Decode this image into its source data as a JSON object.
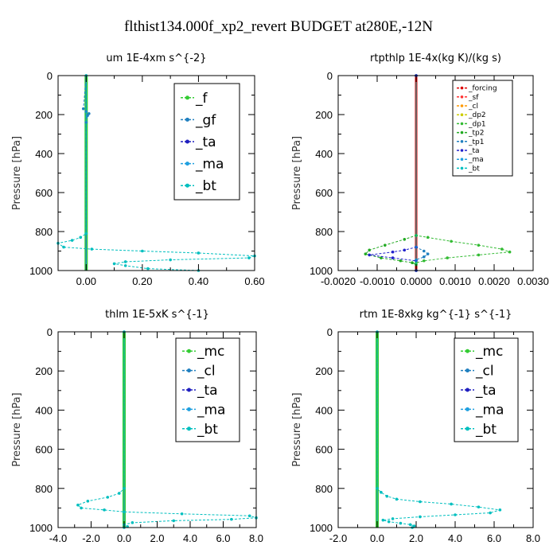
{
  "figure_title": "flthist134.000f_xp2_revert  BUDGET at280E,-12N",
  "chart_data": [
    {
      "type": "line",
      "title": "um  1E-4xm s^{-2}",
      "ylabel": "Pressure [hPa]",
      "xlim": [
        -0.1,
        0.6
      ],
      "ylim": [
        1000,
        0
      ],
      "xticks": [
        -0.1,
        0.0,
        0.1,
        0.2,
        0.3,
        0.4,
        0.5,
        0.6
      ],
      "xticklabels": [
        "",
        "0.00",
        "",
        "0.20",
        "",
        "0.40",
        "",
        "0.60"
      ],
      "yticks": [
        0,
        200,
        400,
        600,
        800,
        1000
      ],
      "yticklabels": [
        "0",
        "200",
        "400",
        "600",
        "800",
        "1000"
      ],
      "legend_position": "upper-right",
      "series": [
        {
          "name": "_f",
          "color": "#33cc33",
          "x": [
            0,
            0,
            0,
            0,
            0,
            0,
            0,
            0,
            0,
            0,
            0,
            0,
            0,
            0,
            0,
            0,
            0,
            0,
            0,
            0,
            0,
            0,
            0,
            0,
            0,
            0,
            0,
            0,
            0,
            0,
            0,
            0,
            0,
            0,
            0,
            0,
            0,
            0,
            0,
            0,
            0
          ],
          "y": [
            0,
            25,
            50,
            75,
            100,
            125,
            150,
            175,
            200,
            225,
            250,
            275,
            300,
            325,
            350,
            375,
            400,
            425,
            450,
            475,
            500,
            525,
            550,
            575,
            600,
            625,
            650,
            675,
            700,
            725,
            750,
            775,
            800,
            825,
            850,
            875,
            900,
            925,
            950,
            975,
            1000
          ]
        },
        {
          "name": "_gf",
          "color": "#1f7fbf",
          "x": [
            0,
            -0.01,
            0,
            0.01,
            0.005,
            0
          ],
          "y": [
            0,
            170,
            185,
            195,
            205,
            240
          ]
        },
        {
          "name": "_ta",
          "color": "#1f1fbf",
          "x": [
            0,
            0,
            0,
            0,
            0
          ],
          "y": [
            0,
            250,
            500,
            750,
            1000
          ]
        },
        {
          "name": "_ma",
          "color": "#1f9fdf",
          "x": [
            0,
            0,
            0,
            0,
            0
          ],
          "y": [
            0,
            250,
            500,
            750,
            1000
          ]
        },
        {
          "name": "_bt",
          "color": "#00bfbf",
          "x": [
            0,
            0,
            -0.02,
            -0.05,
            -0.1,
            -0.08,
            0.02,
            0.2,
            0.4,
            0.6,
            0.58,
            0.3,
            0.14,
            0.1,
            0.14,
            0.22,
            0.4
          ],
          "y": [
            0,
            810,
            830,
            845,
            860,
            880,
            890,
            900,
            910,
            925,
            935,
            945,
            955,
            965,
            975,
            990,
            1000
          ]
        }
      ]
    },
    {
      "type": "line",
      "title": "rtpthlp  1E-4x(kg K)/(kg s)",
      "ylabel": "Pressure [hPa]",
      "xlim": [
        -0.002,
        0.003
      ],
      "ylim": [
        1000,
        0
      ],
      "xticks": [
        -0.002,
        -0.0015,
        -0.001,
        -0.0005,
        0.0,
        0.0005,
        0.001,
        0.0015,
        0.002,
        0.0025,
        0.003
      ],
      "xticklabels": [
        "-0.0020",
        "",
        "-0.0010",
        "",
        "0.0000",
        "",
        "0.0010",
        "",
        "0.0020",
        "",
        "0.0030"
      ],
      "yticks": [
        0,
        200,
        400,
        600,
        800,
        1000
      ],
      "yticklabels": [
        "0",
        "200",
        "400",
        "600",
        "800",
        "1000"
      ],
      "legend_position": "upper-right",
      "series": [
        {
          "name": "_forcing",
          "color": "#dd0000",
          "x": [
            0,
            0,
            0,
            0,
            0
          ],
          "y": [
            0,
            250,
            500,
            750,
            1000
          ]
        },
        {
          "name": "_sf",
          "color": "#ff3333",
          "x": [
            0,
            0,
            0,
            0,
            0
          ],
          "y": [
            0,
            250,
            500,
            750,
            1000
          ]
        },
        {
          "name": "_cl",
          "color": "#ff9900",
          "x": [
            0,
            0,
            0,
            0,
            0
          ],
          "y": [
            0,
            250,
            500,
            750,
            1000
          ]
        },
        {
          "name": "_dp2",
          "color": "#cccc00",
          "x": [
            0,
            0,
            0,
            0,
            0
          ],
          "y": [
            0,
            250,
            500,
            750,
            1000
          ]
        },
        {
          "name": "_dp1",
          "color": "#33bb33",
          "x": [
            0,
            0,
            0.0003,
            0.0009,
            0.0016,
            0.0022,
            0.0024,
            0.0016,
            0.0008,
            0.0002,
            0,
            0
          ],
          "y": [
            0,
            820,
            830,
            850,
            870,
            890,
            905,
            920,
            935,
            950,
            960,
            1000
          ]
        },
        {
          "name": "_tp2",
          "color": "#22aa22",
          "x": [
            0,
            0,
            -0.0003,
            -0.0008,
            -0.0012,
            -0.0013,
            -0.0009,
            -0.0004,
            -0.0001,
            0,
            0
          ],
          "y": [
            0,
            820,
            840,
            870,
            895,
            915,
            935,
            950,
            960,
            970,
            1000
          ]
        },
        {
          "name": "_tp1",
          "color": "#1f7fbf",
          "x": [
            0,
            0,
            0.0002,
            0.0003,
            0.0002,
            0,
            0
          ],
          "y": [
            0,
            880,
            900,
            915,
            930,
            945,
            1000
          ]
        },
        {
          "name": "_ta",
          "color": "#2222cc",
          "x": [
            0,
            0,
            -0.0003,
            -0.0006,
            -0.0012,
            -0.0006,
            0,
            0
          ],
          "y": [
            0,
            880,
            895,
            905,
            920,
            935,
            950,
            1000
          ]
        },
        {
          "name": "_ma",
          "color": "#1f9fdf",
          "x": [
            0,
            0,
            0,
            0,
            0
          ],
          "y": [
            0,
            250,
            500,
            750,
            1000
          ]
        },
        {
          "name": "_bt",
          "color": "#00bfbf",
          "x": [
            0,
            0,
            0,
            0,
            0
          ],
          "y": [
            0,
            250,
            500,
            750,
            1000
          ]
        }
      ]
    },
    {
      "type": "line",
      "title": "thlm  1E-5xK s^{-1}",
      "ylabel": "Pressure [hPa]",
      "xlim": [
        -4.0,
        8.0
      ],
      "ylim": [
        1000,
        0
      ],
      "xticks": [
        -4,
        -3,
        -2,
        -1,
        0,
        1,
        2,
        3,
        4,
        5,
        6,
        7,
        8
      ],
      "xticklabels": [
        "-4.0",
        "",
        "-2.0",
        "",
        "0.0",
        "",
        "2.0",
        "",
        "4.0",
        "",
        "6.0",
        "",
        "8.0"
      ],
      "yticks": [
        0,
        200,
        400,
        600,
        800,
        1000
      ],
      "yticklabels": [
        "0",
        "200",
        "400",
        "600",
        "800",
        "1000"
      ],
      "legend_position": "upper-right",
      "series": [
        {
          "name": "_mc",
          "color": "#33cc33",
          "x": [
            0,
            0,
            0,
            0,
            0,
            0,
            0,
            0,
            0,
            0,
            0,
            0,
            0,
            0,
            0,
            0,
            0,
            0,
            0,
            0,
            0,
            0,
            0,
            0,
            0,
            0,
            0,
            0,
            0,
            0,
            0,
            0,
            0,
            0,
            0,
            0,
            0,
            0,
            0,
            0,
            0
          ],
          "y": [
            0,
            25,
            50,
            75,
            100,
            125,
            150,
            175,
            200,
            225,
            250,
            275,
            300,
            325,
            350,
            375,
            400,
            425,
            450,
            475,
            500,
            525,
            550,
            575,
            600,
            625,
            650,
            675,
            700,
            725,
            750,
            775,
            800,
            825,
            850,
            875,
            900,
            925,
            950,
            975,
            1000
          ]
        },
        {
          "name": "_cl",
          "color": "#1f7fbf",
          "x": [
            0,
            0,
            0,
            0,
            0
          ],
          "y": [
            0,
            250,
            500,
            750,
            1000
          ]
        },
        {
          "name": "_ta",
          "color": "#1f1fbf",
          "x": [
            0,
            0,
            0,
            0,
            0
          ],
          "y": [
            0,
            250,
            500,
            750,
            1000
          ]
        },
        {
          "name": "_ma",
          "color": "#1f9fdf",
          "x": [
            0,
            0,
            0,
            0,
            0
          ],
          "y": [
            0,
            250,
            500,
            750,
            1000
          ]
        },
        {
          "name": "_bt",
          "color": "#00bfbf",
          "x": [
            0,
            0,
            -0.3,
            -1.0,
            -2.2,
            -2.8,
            -2.6,
            -1.2,
            0,
            3.5,
            7.6,
            8.0,
            6.5,
            3.0,
            0.5,
            0,
            0.2,
            0
          ],
          "y": [
            0,
            800,
            825,
            845,
            865,
            885,
            900,
            910,
            920,
            930,
            940,
            950,
            958,
            965,
            975,
            985,
            995,
            1000
          ]
        }
      ]
    },
    {
      "type": "line",
      "title": "rtm  1E-8xkg kg^{-1} s^{-1}",
      "ylabel": "Pressure [hPa]",
      "xlim": [
        -2.0,
        8.0
      ],
      "ylim": [
        1000,
        0
      ],
      "xticks": [
        -2,
        -1,
        0,
        1,
        2,
        3,
        4,
        5,
        6,
        7,
        8
      ],
      "xticklabels": [
        "-2.0",
        "",
        "0.0",
        "",
        "2.0",
        "",
        "4.0",
        "",
        "6.0",
        "",
        "8.0"
      ],
      "yticks": [
        0,
        200,
        400,
        600,
        800,
        1000
      ],
      "yticklabels": [
        "0",
        "200",
        "400",
        "600",
        "800",
        "1000"
      ],
      "legend_position": "upper-right",
      "series": [
        {
          "name": "_mc",
          "color": "#33cc33",
          "x": [
            0,
            0,
            0,
            0,
            0,
            0,
            0,
            0,
            0,
            0,
            0,
            0,
            0,
            0,
            0,
            0,
            0,
            0,
            0,
            0,
            0,
            0,
            0,
            0,
            0,
            0,
            0,
            0,
            0,
            0,
            0,
            0,
            0,
            0,
            0,
            0,
            0,
            0,
            0,
            0,
            0
          ],
          "y": [
            0,
            25,
            50,
            75,
            100,
            125,
            150,
            175,
            200,
            225,
            250,
            275,
            300,
            325,
            350,
            375,
            400,
            425,
            450,
            475,
            500,
            525,
            550,
            575,
            600,
            625,
            650,
            675,
            700,
            725,
            750,
            775,
            800,
            825,
            850,
            875,
            900,
            925,
            950,
            975,
            1000
          ]
        },
        {
          "name": "_cl",
          "color": "#1f7fbf",
          "x": [
            0,
            0,
            0,
            0,
            0
          ],
          "y": [
            0,
            250,
            500,
            750,
            1000
          ]
        },
        {
          "name": "_ta",
          "color": "#1f1fbf",
          "x": [
            0,
            0,
            0,
            0,
            0
          ],
          "y": [
            0,
            250,
            500,
            750,
            1000
          ]
        },
        {
          "name": "_ma",
          "color": "#1f9fdf",
          "x": [
            0,
            0,
            0,
            0,
            0
          ],
          "y": [
            0,
            250,
            500,
            750,
            1000
          ]
        },
        {
          "name": "_bt",
          "color": "#00bfbf",
          "x": [
            0,
            0,
            0.2,
            0.5,
            1.0,
            2.2,
            3.8,
            5.2,
            6.3,
            5.8,
            4.0,
            2.2,
            0.8,
            0.3,
            0.6,
            1.2,
            1.7,
            1.9,
            1.8
          ],
          "y": [
            0,
            800,
            820,
            840,
            855,
            868,
            880,
            895,
            910,
            925,
            935,
            945,
            955,
            962,
            970,
            978,
            985,
            992,
            1000
          ]
        }
      ]
    }
  ]
}
